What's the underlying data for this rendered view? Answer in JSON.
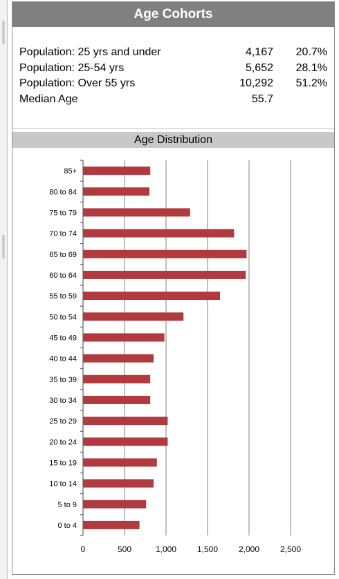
{
  "header": {
    "title": "Age Cohorts"
  },
  "cohorts": [
    {
      "label": "Population: 25 yrs and under",
      "value": "4,167",
      "percent": "20.7%"
    },
    {
      "label": "Population: 25-54 yrs",
      "value": "5,652",
      "percent": "28.1%"
    },
    {
      "label": "Population: Over 55 yrs",
      "value": "10,292",
      "percent": "51.2%"
    },
    {
      "label": "Median Age",
      "value": "55.7",
      "percent": ""
    }
  ],
  "colors": {
    "bar": "#b03a3e",
    "header_bg": "#808080",
    "subheader_bg": "#c8c8c8",
    "grid": "#7f7f7f"
  },
  "chart_data": {
    "type": "bar",
    "orientation": "horizontal",
    "title": "Age Distribution",
    "categories": [
      "85+",
      "80 to 84",
      "75 to 79",
      "70 to 74",
      "65 to 69",
      "60 to 64",
      "55 to 59",
      "50 to 54",
      "45 to 49",
      "40 to 44",
      "35 to 39",
      "30 to 34",
      "25 to 29",
      "20 to 24",
      "15 to 19",
      "10 to 14",
      "5 to 9",
      "0 to 4"
    ],
    "values": [
      810,
      800,
      1290,
      1820,
      1970,
      1960,
      1650,
      1210,
      980,
      850,
      810,
      810,
      1020,
      1020,
      890,
      850,
      760,
      680
    ],
    "xlim": [
      0,
      2500
    ],
    "x_ticks": [
      "0",
      "500",
      "1,000",
      "1,500",
      "2,000",
      "2,500"
    ],
    "grid": true,
    "xlabel": "",
    "ylabel": ""
  }
}
